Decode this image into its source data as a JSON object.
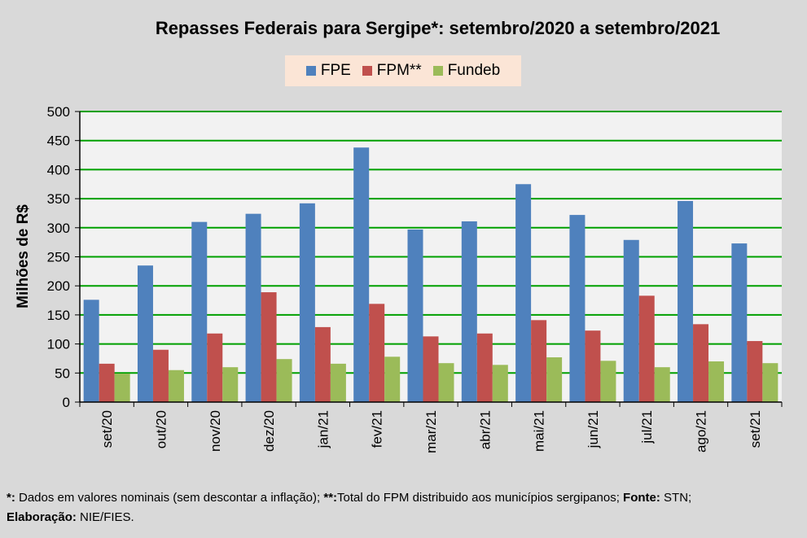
{
  "chart_data": {
    "type": "bar",
    "title": "Repasses Federais para Sergipe*: setembro/2020 a setembro/2021",
    "xlabel": "",
    "ylabel": "Milhões de R$",
    "ylim": [
      0,
      500
    ],
    "yticks": [
      0,
      50,
      100,
      150,
      200,
      250,
      300,
      350,
      400,
      450,
      500
    ],
    "grid": true,
    "legend_position": "top-center",
    "categories": [
      "set/20",
      "out/20",
      "nov/20",
      "dez/20",
      "jan/21",
      "fev/21",
      "mar/21",
      "abr/21",
      "mai/21",
      "jun/21",
      "jul/21",
      "ago/21",
      "set/21"
    ],
    "series": [
      {
        "name": "FPE",
        "color": "#4f81bd",
        "values": [
          176,
          235,
          310,
          324,
          342,
          438,
          297,
          311,
          375,
          322,
          279,
          346,
          273
        ]
      },
      {
        "name": "FPM**",
        "color": "#c0504d",
        "values": [
          66,
          90,
          118,
          189,
          129,
          169,
          113,
          118,
          141,
          123,
          183,
          134,
          105
        ]
      },
      {
        "name": "Fundeb",
        "color": "#9bbb59",
        "values": [
          49,
          55,
          60,
          74,
          66,
          78,
          67,
          64,
          77,
          71,
          60,
          70,
          67
        ]
      }
    ]
  },
  "footnote": {
    "l1_b1": "*:",
    "l1_t1": " Dados em valores nominais (sem descontar a inflação); ",
    "l1_b2": "**:",
    "l1_t2": "Total  do FPM distribuido aos municípios sergipanos; ",
    "l1_b3": "Fonte:",
    "l1_t3": " STN;",
    "l2_b1": "Elaboração:",
    "l2_t1": " NIE/FIES."
  }
}
